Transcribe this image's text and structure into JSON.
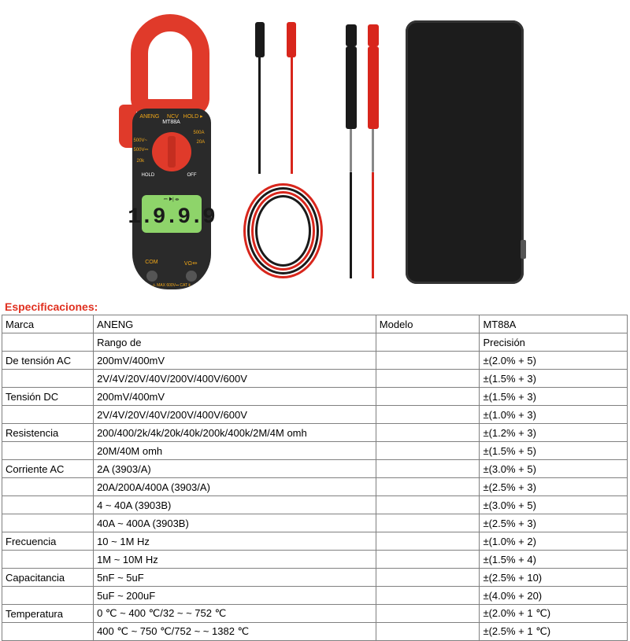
{
  "heading": "Especificaciones:",
  "header_row": {
    "c1": "Marca",
    "c2": "ANENG",
    "c3": "Modelo",
    "c4": "MT88A"
  },
  "sub_header": {
    "c1": "",
    "c2": "Rango de",
    "c3": "",
    "c4": "Precisión"
  },
  "specs": [
    {
      "label": "De tensión AC",
      "range": "200mV/400mV",
      "mid": "",
      "prec": "±(2.0% + 5)"
    },
    {
      "label": "",
      "range": "2V/4V/20V/40V/200V/400V/600V",
      "mid": "",
      "prec": "±(1.5% + 3)"
    },
    {
      "label": "Tensión DC",
      "range": "200mV/400mV",
      "mid": "",
      "prec": "±(1.5% + 3)"
    },
    {
      "label": "",
      "range": "2V/4V/20V/40V/200V/400V/600V",
      "mid": "",
      "prec": "±(1.0% + 3)"
    },
    {
      "label": "Resistencia",
      "range": "200/400/2k/4k/20k/40k/200k/400k/2M/4M omh",
      "mid": "",
      "prec": "±(1.2% + 3)"
    },
    {
      "label": "",
      "range": "20M/40M omh",
      "mid": "",
      "prec": "±(1.5% + 5)"
    },
    {
      "label": "Corriente AC",
      "range": "2A (3903/A)",
      "mid": "",
      "prec": "±(3.0% + 5)"
    },
    {
      "label": "",
      "range": "20A/200A/400A (3903/A)",
      "mid": "",
      "prec": "±(2.5% + 3)"
    },
    {
      "label": "",
      "range": "4 ~ 40A (3903B)",
      "mid": "",
      "prec": "±(3.0% + 5)"
    },
    {
      "label": "",
      "range": "40A ~ 400A (3903B)",
      "mid": "",
      "prec": "±(2.5% + 3)"
    },
    {
      "label": "Frecuencia",
      "range": "10 ~ 1M Hz",
      "mid": "",
      "prec": "±(1.0% + 2)"
    },
    {
      "label": "",
      "range": "1M ~ 10M Hz",
      "mid": "",
      "prec": "±(1.5% + 4)"
    },
    {
      "label": "Capacitancia",
      "range": "5nF ~ 5uF",
      "mid": "",
      "prec": "±(2.5% + 10)"
    },
    {
      "label": "",
      "range": "5uF ~ 200uF",
      "mid": "",
      "prec": "±(4.0% + 20)"
    },
    {
      "label": "Temperatura",
      "range": "0 ℃ ~ 400 ℃/32 ~ ~ 752 ℃",
      "mid": "",
      "prec": "±(2.0% + 1 ℃)"
    },
    {
      "label": "",
      "range": "400 ℃ ~ 750 ℃/752 ~ ~ 1382 ℃",
      "mid": "",
      "prec": "±(2.5% + 1 ℃)"
    }
  ],
  "meter": {
    "brand": "ANENG",
    "model": "MT88A",
    "ncv": "NCV",
    "hold": "HOLD ▸",
    "dial": {
      "p500a": "500A",
      "p20a": "20A",
      "p500v1": "500V~",
      "p500v2": "500V⎓",
      "p20k": "20k",
      "phold": "HOLD",
      "poff": "OFF"
    },
    "screen_top": "⎓ ▶|  ⏛",
    "screen_digits": "1.9.9.9",
    "port_com": "COM",
    "port_v": "VΩ⏛",
    "bottom": "⚠ MAX 600V⎓ CAT Ⅱ"
  },
  "colors": {
    "red": "#e03a2a",
    "dark": "#2a2a2a",
    "screen": "#8ed46a",
    "gold": "#f2a818",
    "lead_red": "#d8261c",
    "lead_black": "#1a1a1a",
    "case": "#1c1c1c",
    "border": "#808080",
    "heading": "#e03020"
  }
}
